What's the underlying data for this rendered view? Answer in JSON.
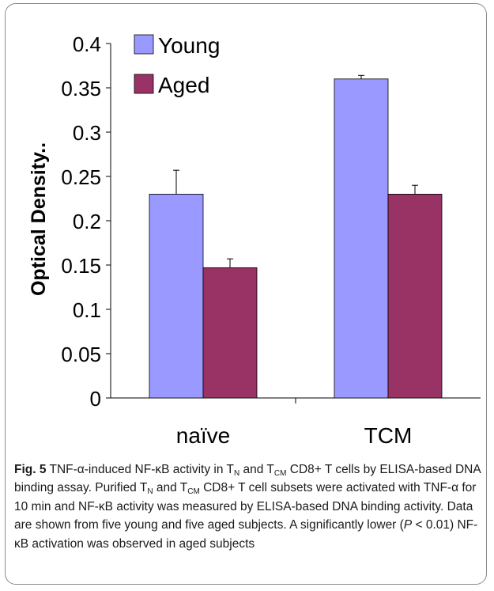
{
  "chart_data": {
    "type": "bar",
    "categories": [
      "naïve",
      "TCM"
    ],
    "series": [
      {
        "name": "Young",
        "color": "#9999ff",
        "values": [
          0.23,
          0.36
        ],
        "errors": [
          0.027,
          0.004
        ]
      },
      {
        "name": "Aged",
        "color": "#993366",
        "values": [
          0.147,
          0.23
        ],
        "errors": [
          0.01,
          0.01
        ]
      }
    ],
    "ylabel": "Optical Density..",
    "xlabel": "",
    "ylim": [
      0,
      0.4
    ],
    "yticks": [
      "0",
      "0.05",
      "0.1",
      "0.15",
      "0.2",
      "0.25",
      "0.3",
      "0.35",
      "0.4"
    ],
    "grid": false,
    "legend_position": "top-left"
  },
  "caption": {
    "fig_label": "Fig. 5",
    "p1": " TNF-α-induced NF-κB activity in T",
    "sub_n1": "N",
    "p2": " and T",
    "sub_cm1": "CM",
    "p3": " CD8+ T cells by ELISA-based DNA binding assay. Purified T",
    "sub_n2": "N",
    "p4": " and T",
    "sub_cm2": "CM",
    "p5": " CD8+ T cell subsets were activated with TNF-α for 10 min and NF-κB activity was measured by ELISA-based DNA binding activity. Data are shown from five young and five aged subjects. A significantly lower (",
    "p_italic": "P",
    "p6": " < 0.01) NF-κB activation was observed in aged subjects"
  }
}
